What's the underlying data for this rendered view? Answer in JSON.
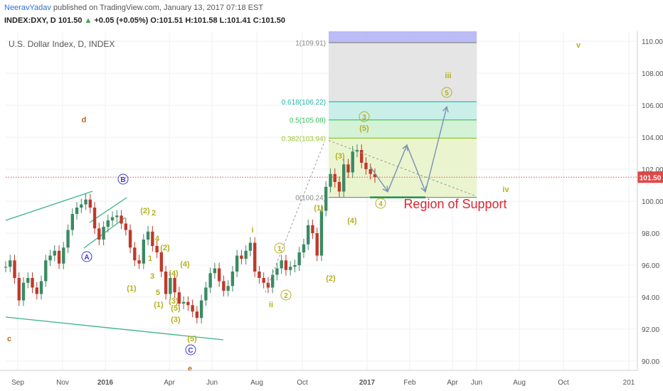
{
  "header": {
    "author": "NeeravYadav",
    "published": "published on TradingView.com, January 13, 2017 07:18 EST",
    "symbol": "INDEX:DXY, D",
    "last": "101.50",
    "change_arrow": "▲",
    "change": "+0.05 (+0.05%)",
    "open": "O:101.51",
    "high": "H:101.58",
    "low": "L:101.41",
    "close": "C:101.50"
  },
  "chart_data": {
    "type": "line",
    "title": "U.S. Dollar Index, D, INDEX",
    "x_ticks": [
      "Sep",
      "Nov",
      "2016",
      "Apr",
      "Jun",
      "Aug",
      "Oct",
      "2017",
      "Feb",
      "Apr",
      "Jun",
      "Aug",
      "Oct",
      "201"
    ],
    "y_ticks": [
      "110.00",
      "108.00",
      "106.00",
      "104.00",
      "102.00",
      "100.00",
      "98.00",
      "96.00",
      "94.00",
      "92.00",
      "90.00"
    ],
    "ylim": [
      89.5,
      110.7
    ],
    "last_price": "101.50",
    "series": [
      {
        "values": [
          95.9,
          96.3,
          95.2,
          93.8,
          94.9,
          95.2,
          94.6,
          94.2,
          95.0,
          96.3,
          96.6,
          96.9,
          96.1,
          97.1,
          98.2,
          99.2,
          99.6,
          99.8,
          100.1,
          99.6,
          98.3,
          97.6,
          98.4,
          98.8,
          99.0,
          99.1,
          98.6,
          98.2,
          97.1,
          96.3,
          96.1,
          97.6,
          98.1,
          97.2,
          96.8,
          95.6,
          94.2,
          95.2,
          94.3,
          93.6,
          93.7,
          93.5,
          93.1,
          92.7,
          93.8,
          94.6,
          95.5,
          95.8,
          95.0,
          94.4,
          94.7,
          95.6,
          96.6,
          96.4,
          96.9,
          97.4,
          95.6,
          95.2,
          94.9,
          94.6,
          95.4,
          95.8,
          96.3,
          95.7,
          95.9,
          96.0,
          96.8,
          97.3,
          98.5,
          98.0,
          96.6,
          99.4,
          100.9,
          101.7,
          101.2,
          100.6,
          102.3,
          101.8,
          103.1,
          103.2,
          102.4,
          102.0,
          101.7,
          101.5
        ]
      }
    ],
    "fib_levels": [
      {
        "label": "1(109.91)",
        "value": 109.91,
        "color": "#888888"
      },
      {
        "label": "0.618(106.22)",
        "value": 106.22,
        "color": "#22b5a5"
      },
      {
        "label": "0.5(105.08)",
        "value": 105.08,
        "color": "#3cbf60"
      },
      {
        "label": "0.382(103.94)",
        "value": 103.94,
        "color": "#9cc43a"
      },
      {
        "label": "0(100.24)",
        "value": 100.24,
        "color": "#888888"
      }
    ],
    "annotations": [
      {
        "text": "d",
        "x": 118,
        "y": 172,
        "color": "#b8661a"
      },
      {
        "text": "c",
        "x": 13,
        "y": 480,
        "color": "#b8661a"
      },
      {
        "text": "e",
        "x": 267,
        "y": 522,
        "color": "#b8661a"
      },
      {
        "text": "B",
        "x": 173,
        "y": 256,
        "color": "#3a3acb",
        "circled": true
      },
      {
        "text": "A",
        "x": 122,
        "y": 365,
        "color": "#3a3acb",
        "circled": true
      },
      {
        "text": "C",
        "x": 268,
        "y": 496,
        "color": "#3a3acb",
        "circled": true
      },
      {
        "text": "(2)",
        "x": 204,
        "y": 300,
        "color": "#b5b01e"
      },
      {
        "text": "2",
        "x": 216,
        "y": 303,
        "color": "#b5b01e"
      },
      {
        "text": "4",
        "x": 221,
        "y": 339,
        "color": "#b5b01e"
      },
      {
        "text": "(2)",
        "x": 232,
        "y": 352,
        "color": "#b5b01e"
      },
      {
        "text": "1",
        "x": 211,
        "y": 367,
        "color": "#b5b01e"
      },
      {
        "text": "(4)",
        "x": 260,
        "y": 375,
        "color": "#b5b01e"
      },
      {
        "text": "(4)",
        "x": 244,
        "y": 388,
        "color": "#b5b01e"
      },
      {
        "text": "3",
        "x": 214,
        "y": 392,
        "color": "#b5b01e"
      },
      {
        "text": "(1)",
        "x": 185,
        "y": 409,
        "color": "#b5b01e"
      },
      {
        "text": "5",
        "x": 222,
        "y": 415,
        "color": "#b5b01e"
      },
      {
        "text": "(1)",
        "x": 223,
        "y": 432,
        "color": "#b5b01e"
      },
      {
        "text": "(3)",
        "x": 244,
        "y": 427,
        "color": "#b5b01e"
      },
      {
        "text": "(5)",
        "x": 247,
        "y": 437,
        "color": "#b5b01e"
      },
      {
        "text": "(3)",
        "x": 247,
        "y": 453,
        "color": "#b5b01e"
      },
      {
        "text": "(5)",
        "x": 270,
        "y": 480,
        "color": "#b5b01e"
      },
      {
        "text": "i",
        "x": 355,
        "y": 327,
        "color": "#b5b01e"
      },
      {
        "text": "1",
        "x": 393,
        "y": 353,
        "color": "#b5b01e",
        "circled": true
      },
      {
        "text": "ii",
        "x": 381,
        "y": 432,
        "color": "#b5b01e"
      },
      {
        "text": "2",
        "x": 402,
        "y": 419,
        "color": "#b5b01e",
        "circled": true
      },
      {
        "text": "(1)",
        "x": 448,
        "y": 296,
        "color": "#b5b01e"
      },
      {
        "text": "(2)",
        "x": 465,
        "y": 395,
        "color": "#b5b01e"
      },
      {
        "text": "(3)",
        "x": 478,
        "y": 223,
        "color": "#b5b01e"
      },
      {
        "text": "(4)",
        "x": 495,
        "y": 314,
        "color": "#b5b01e"
      },
      {
        "text": "(5)",
        "x": 512,
        "y": 184,
        "color": "#b5b01e"
      },
      {
        "text": "3",
        "x": 512,
        "y": 168,
        "color": "#b5b01e",
        "circled": true
      },
      {
        "text": "4",
        "x": 535,
        "y": 290,
        "color": "#b5b01e",
        "circled": true
      },
      {
        "text": "5",
        "x": 628,
        "y": 134,
        "color": "#b5b01e",
        "circled": true
      },
      {
        "text": "iii",
        "x": 630,
        "y": 110,
        "color": "#b5b01e"
      },
      {
        "text": "iv",
        "x": 711,
        "y": 270,
        "color": "#b5b01e"
      },
      {
        "text": "v",
        "x": 813,
        "y": 67,
        "color": "#b5b01e"
      },
      {
        "text": "Region of Support",
        "x": 640,
        "y": 293,
        "color": "#e0262f",
        "big": true
      }
    ]
  }
}
